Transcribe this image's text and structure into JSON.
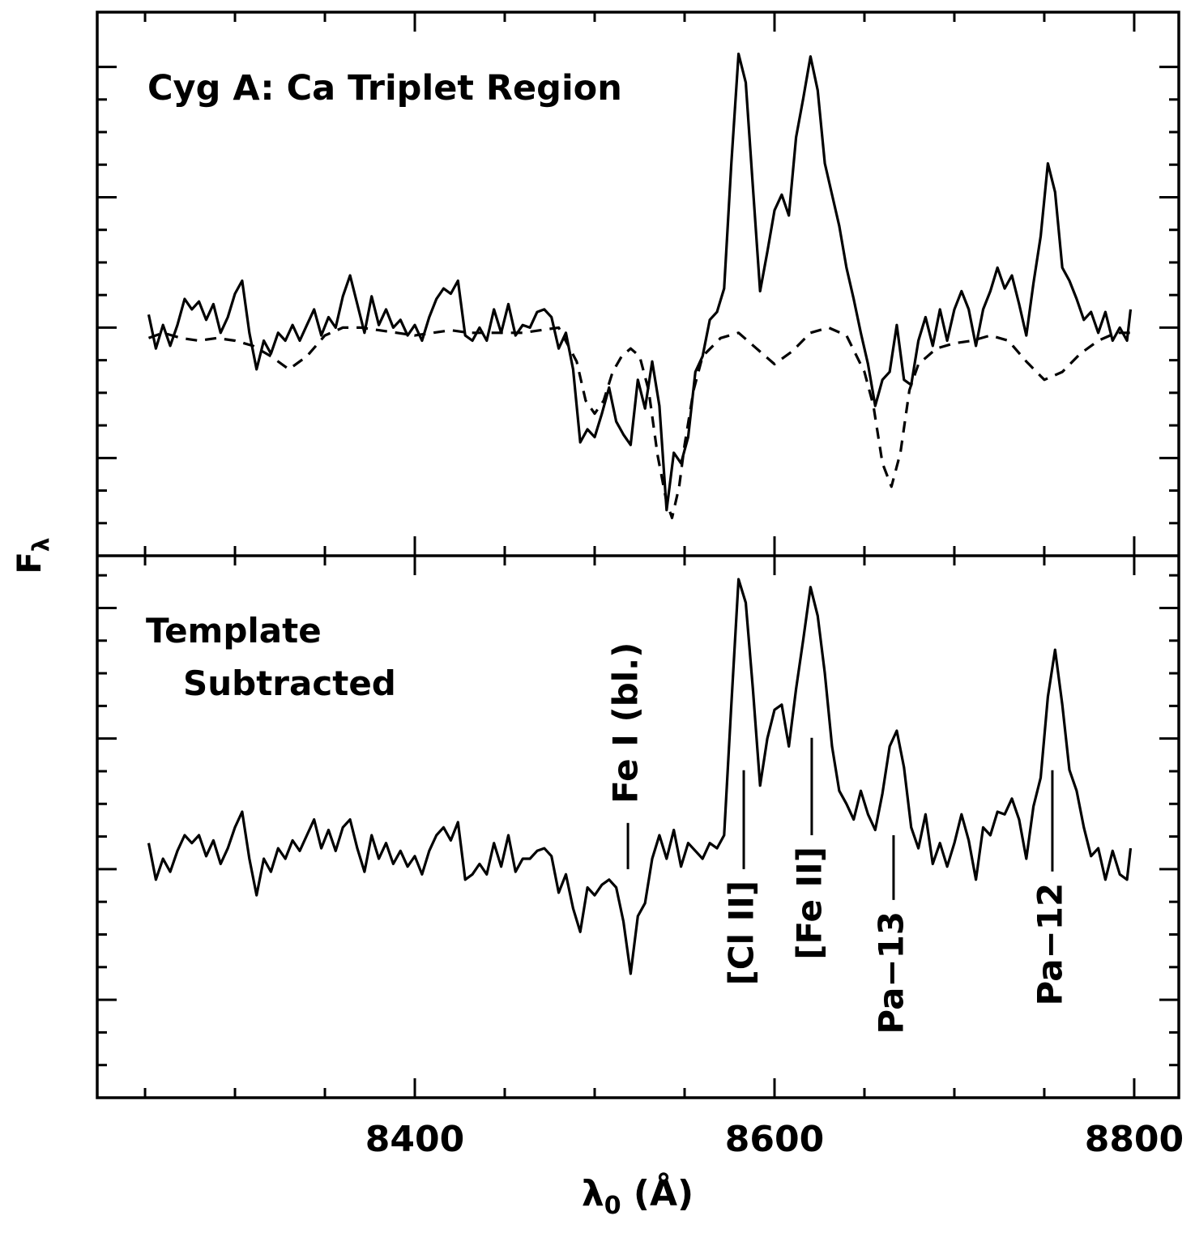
{
  "chart_data": [
    {
      "type": "line",
      "title": "Cyg A: Ca Triplet Region",
      "ylabel": {
        "text": "F",
        "subscript": "λ"
      },
      "xlim": [
        8223.4,
        8824.8
      ],
      "ylim": [
        0.125,
        2.21
      ],
      "xticks": [
        8400,
        8600,
        8800
      ],
      "xminor": [
        8250,
        8300,
        8350,
        8450,
        8500,
        8550,
        8650,
        8700,
        8750
      ],
      "yticks": [
        0.5,
        1,
        1.5,
        2
      ],
      "yminor": [
        0.25,
        0.375,
        0.625,
        0.75,
        0.875,
        1.125,
        1.25,
        1.375,
        1.625,
        1.75,
        1.875
      ],
      "tick_labels": false,
      "series": [
        {
          "color": "#000000",
          "dashed": false,
          "x": [
            8252,
            8256,
            8260,
            8264,
            8268,
            8272,
            8276,
            8280,
            8284,
            8288,
            8292,
            8296,
            8300,
            8304,
            8308,
            8312,
            8316,
            8320,
            8324,
            8328,
            8332,
            8336,
            8340,
            8344,
            8348,
            8352,
            8356,
            8360,
            8364,
            8368,
            8372,
            8376,
            8380,
            8384,
            8388,
            8392,
            8396,
            8400,
            8404,
            8408,
            8412,
            8416,
            8420,
            8424,
            8428,
            8432,
            8436,
            8440,
            8444,
            8448,
            8452,
            8456,
            8460,
            8464,
            8468,
            8472,
            8476,
            8480,
            8484,
            8488,
            8492,
            8496,
            8500,
            8504,
            8508,
            8512,
            8516,
            8520,
            8524,
            8528,
            8532,
            8536,
            8540,
            8544,
            8548,
            8552,
            8556,
            8560,
            8564,
            8568,
            8572,
            8576,
            8580,
            8584,
            8588,
            8592,
            8596,
            8600,
            8604,
            8608,
            8612,
            8616,
            8620,
            8624,
            8628,
            8632,
            8636,
            8640,
            8644,
            8648,
            8652,
            8656,
            8660,
            8664,
            8668,
            8672,
            8676,
            8680,
            8684,
            8688,
            8692,
            8696,
            8700,
            8704,
            8708,
            8712,
            8716,
            8720,
            8724,
            8728,
            8732,
            8736,
            8740,
            8744,
            8748,
            8752,
            8756,
            8760,
            8764,
            8768,
            8772,
            8776,
            8780,
            8784,
            8788,
            8792,
            8796,
            8798
          ],
          "values": [
            1.05,
            0.92,
            1.01,
            0.93,
            1.01,
            1.11,
            1.07,
            1.1,
            1.03,
            1.09,
            0.98,
            1.04,
            1.13,
            1.18,
            0.98,
            0.84,
            0.95,
            0.9,
            0.98,
            0.95,
            1.01,
            0.95,
            1.01,
            1.07,
            0.97,
            1.04,
            1.0,
            1.12,
            1.2,
            1.09,
            0.98,
            1.12,
            1.01,
            1.07,
            1.0,
            1.03,
            0.97,
            1.01,
            0.95,
            1.04,
            1.11,
            1.15,
            1.13,
            1.18,
            0.97,
            0.95,
            1.0,
            0.95,
            1.07,
            0.98,
            1.09,
            0.97,
            1.01,
            1.0,
            1.06,
            1.07,
            1.04,
            0.92,
            0.98,
            0.84,
            0.56,
            0.61,
            0.58,
            0.67,
            0.77,
            0.64,
            0.59,
            0.55,
            0.8,
            0.69,
            0.87,
            0.7,
            0.3,
            0.52,
            0.48,
            0.58,
            0.83,
            0.89,
            1.03,
            1.06,
            1.15,
            1.63,
            2.05,
            1.94,
            1.54,
            1.14,
            1.29,
            1.45,
            1.51,
            1.43,
            1.73,
            1.88,
            2.04,
            1.91,
            1.63,
            1.51,
            1.39,
            1.23,
            1.11,
            0.98,
            0.86,
            0.7,
            0.8,
            0.83,
            1.01,
            0.8,
            0.78,
            0.95,
            1.04,
            0.93,
            1.07,
            0.95,
            1.07,
            1.14,
            1.07,
            0.93,
            1.07,
            1.14,
            1.23,
            1.15,
            1.2,
            1.09,
            0.97,
            1.17,
            1.35,
            1.63,
            1.52,
            1.23,
            1.18,
            1.11,
            1.03,
            1.06,
            0.98,
            1.06,
            0.95,
            1.0,
            0.95,
            1.07
          ]
        },
        {
          "color": "#000000",
          "dashed": true,
          "x": [
            8252,
            8260,
            8270,
            8280,
            8290,
            8300,
            8310,
            8320,
            8330,
            8340,
            8350,
            8360,
            8370,
            8380,
            8390,
            8400,
            8410,
            8420,
            8430,
            8440,
            8450,
            8460,
            8470,
            8480,
            8490,
            8495,
            8500,
            8505,
            8510,
            8515,
            8520,
            8525,
            8530,
            8535,
            8540,
            8543,
            8547,
            8550,
            8555,
            8560,
            8570,
            8580,
            8590,
            8600,
            8610,
            8620,
            8630,
            8640,
            8650,
            8655,
            8660,
            8665,
            8670,
            8675,
            8680,
            8690,
            8700,
            8710,
            8720,
            8730,
            8740,
            8750,
            8760,
            8770,
            8780,
            8790,
            8800
          ],
          "values": [
            0.96,
            0.98,
            0.96,
            0.95,
            0.96,
            0.95,
            0.93,
            0.89,
            0.84,
            0.89,
            0.97,
            1.0,
            1.0,
            0.99,
            0.98,
            0.97,
            0.98,
            0.99,
            0.98,
            0.98,
            0.98,
            0.98,
            0.99,
            1.0,
            0.87,
            0.72,
            0.67,
            0.72,
            0.83,
            0.89,
            0.92,
            0.89,
            0.76,
            0.51,
            0.33,
            0.27,
            0.39,
            0.55,
            0.76,
            0.89,
            0.96,
            0.98,
            0.92,
            0.86,
            0.91,
            0.98,
            1.0,
            0.97,
            0.83,
            0.7,
            0.48,
            0.39,
            0.52,
            0.76,
            0.86,
            0.92,
            0.94,
            0.95,
            0.97,
            0.95,
            0.87,
            0.8,
            0.83,
            0.9,
            0.95,
            0.98,
            0.98
          ]
        }
      ]
    },
    {
      "type": "line",
      "title": [
        "Template",
        "Subtracted"
      ],
      "xlabel": {
        "text": "λ",
        "subscript": "0",
        "rest": " (Å)"
      },
      "xlim": [
        8223.4,
        8824.8
      ],
      "ylim": [
        -0.875,
        1.2
      ],
      "xticks": [
        8400,
        8600,
        8800
      ],
      "xminor": [
        8250,
        8300,
        8350,
        8450,
        8500,
        8550,
        8650,
        8700,
        8750
      ],
      "yticks": [
        -0.5,
        0,
        0.5,
        1
      ],
      "yminor": [
        -0.75,
        -0.625,
        -0.375,
        -0.25,
        -0.125,
        0.125,
        0.25,
        0.375,
        0.625,
        0.75,
        0.875,
        1.125
      ],
      "tick_labels": true,
      "series": [
        {
          "color": "#000000",
          "dashed": false,
          "x": [
            8252,
            8256,
            8260,
            8264,
            8268,
            8272,
            8276,
            8280,
            8284,
            8288,
            8292,
            8296,
            8300,
            8304,
            8308,
            8312,
            8316,
            8320,
            8324,
            8328,
            8332,
            8336,
            8340,
            8344,
            8348,
            8352,
            8356,
            8360,
            8364,
            8368,
            8372,
            8376,
            8380,
            8384,
            8388,
            8392,
            8396,
            8400,
            8404,
            8408,
            8412,
            8416,
            8420,
            8424,
            8428,
            8432,
            8436,
            8440,
            8444,
            8448,
            8452,
            8456,
            8460,
            8464,
            8468,
            8472,
            8476,
            8480,
            8484,
            8488,
            8492,
            8496,
            8500,
            8504,
            8508,
            8512,
            8516,
            8520,
            8524,
            8528,
            8532,
            8536,
            8540,
            8544,
            8548,
            8552,
            8556,
            8560,
            8564,
            8568,
            8572,
            8576,
            8580,
            8584,
            8588,
            8592,
            8596,
            8600,
            8604,
            8608,
            8612,
            8616,
            8620,
            8624,
            8628,
            8632,
            8636,
            8640,
            8644,
            8648,
            8652,
            8656,
            8660,
            8664,
            8668,
            8672,
            8676,
            8680,
            8684,
            8688,
            8692,
            8696,
            8700,
            8704,
            8708,
            8712,
            8716,
            8720,
            8724,
            8728,
            8732,
            8736,
            8740,
            8744,
            8748,
            8752,
            8756,
            8760,
            8764,
            8768,
            8772,
            8776,
            8780,
            8784,
            8788,
            8792,
            8796,
            8798
          ],
          "values": [
            0.1,
            -0.04,
            0.04,
            -0.01,
            0.07,
            0.13,
            0.1,
            0.13,
            0.05,
            0.11,
            0.02,
            0.08,
            0.16,
            0.22,
            0.04,
            -0.1,
            0.04,
            -0.01,
            0.08,
            0.04,
            0.11,
            0.07,
            0.13,
            0.19,
            0.08,
            0.15,
            0.07,
            0.16,
            0.19,
            0.08,
            -0.01,
            0.13,
            0.04,
            0.1,
            0.02,
            0.07,
            0.01,
            0.05,
            -0.02,
            0.07,
            0.13,
            0.16,
            0.11,
            0.18,
            -0.04,
            -0.02,
            0.02,
            -0.02,
            0.1,
            0.01,
            0.13,
            -0.01,
            0.04,
            0.04,
            0.07,
            0.08,
            0.05,
            -0.09,
            -0.02,
            -0.15,
            -0.24,
            -0.07,
            -0.1,
            -0.06,
            -0.04,
            -0.07,
            -0.2,
            -0.4,
            -0.18,
            -0.13,
            0.04,
            0.13,
            0.04,
            0.15,
            0.01,
            0.1,
            0.07,
            0.04,
            0.1,
            0.08,
            0.13,
            0.63,
            1.11,
            1.02,
            0.69,
            0.32,
            0.5,
            0.61,
            0.63,
            0.47,
            0.69,
            0.88,
            1.08,
            0.97,
            0.75,
            0.47,
            0.3,
            0.25,
            0.19,
            0.3,
            0.21,
            0.15,
            0.29,
            0.47,
            0.53,
            0.39,
            0.16,
            0.08,
            0.21,
            0.02,
            0.1,
            0.01,
            0.1,
            0.21,
            0.11,
            -0.04,
            0.16,
            0.13,
            0.22,
            0.21,
            0.27,
            0.19,
            0.04,
            0.24,
            0.35,
            0.66,
            0.84,
            0.63,
            0.38,
            0.3,
            0.16,
            0.05,
            0.08,
            -0.04,
            0.07,
            -0.02,
            -0.04,
            0.08
          ]
        }
      ],
      "annotations": [
        {
          "text": "Fe I (bl.)",
          "x": 8518.5,
          "y": [
            0,
            0.177
          ],
          "side": "above"
        },
        {
          "text": "[Cl II]",
          "x": 8582.9,
          "y": [
            0.379,
            0
          ],
          "side": "below"
        },
        {
          "text": "[Fe II]",
          "x": 8620.7,
          "y": [
            0.503,
            0.13
          ],
          "side": "below"
        },
        {
          "text": "Pa−13",
          "x": 8666.2,
          "y": [
            0.13,
            -0.118
          ],
          "side": "below"
        },
        {
          "text": "Pa−12",
          "x": 8754.5,
          "y": [
            0.379,
            -0.009
          ],
          "side": "below"
        }
      ]
    }
  ]
}
